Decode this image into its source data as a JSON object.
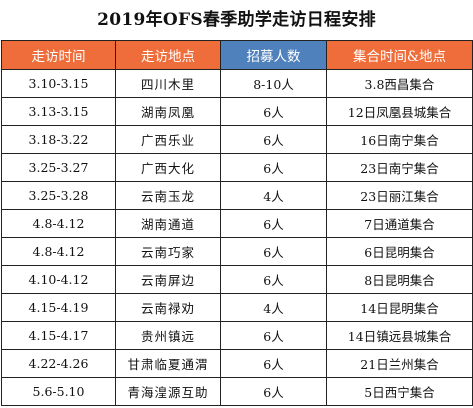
{
  "title": "2019年OFS春季助学走访日程安排",
  "colors": {
    "header_orange": "#ef6d3b",
    "header_blue": "#4f81bd",
    "header_text": "#ffffff",
    "border": "#222222"
  },
  "table": {
    "headers": [
      "走访时间",
      "走访地点",
      "招募人数",
      "集合时间&地点"
    ],
    "rows": [
      [
        "3.10-3.15",
        "四川木里",
        "8-10人",
        "3.8西昌集合"
      ],
      [
        "3.13-3.15",
        "湖南凤凰",
        "6人",
        "12日凤凰县城集合"
      ],
      [
        "3.18-3.22",
        "广西乐业",
        "6人",
        "16日南宁集合"
      ],
      [
        "3.25-3.27",
        "广西大化",
        "6人",
        "23日南宁集合"
      ],
      [
        "3.25-3.28",
        "云南玉龙",
        "4人",
        "23日丽江集合"
      ],
      [
        "4.8-4.12",
        "湖南通道",
        "6人",
        "7日通道集合"
      ],
      [
        "4.8-4.12",
        "云南巧家",
        "6人",
        "6日昆明集合"
      ],
      [
        "4.10-4.12",
        "云南屏边",
        "6人",
        "8日昆明集合"
      ],
      [
        "4.15-4.19",
        "云南禄劝",
        "4人",
        "14日昆明集合"
      ],
      [
        "4.15-4.17",
        "贵州镇远",
        "6人",
        "14日镇远县城集合"
      ],
      [
        "4.22-4.26",
        "甘肃临夏通渭",
        "6人",
        "21日兰州集合"
      ],
      [
        "5.6-5.10",
        "青海湟源互助",
        "6人",
        "5日西宁集合"
      ]
    ]
  }
}
